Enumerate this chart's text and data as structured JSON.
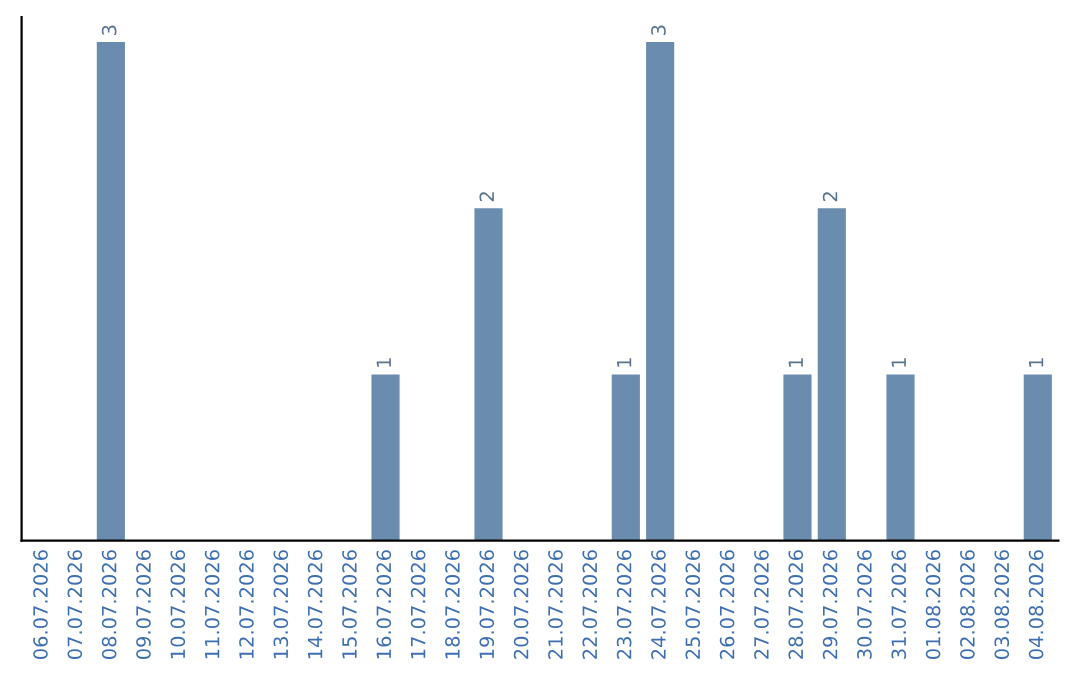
{
  "chart_data": {
    "type": "bar",
    "categories": [
      "06.07.2026",
      "07.07.2026",
      "08.07.2026",
      "09.07.2026",
      "10.07.2026",
      "11.07.2026",
      "12.07.2026",
      "13.07.2026",
      "14.07.2026",
      "15.07.2026",
      "16.07.2026",
      "17.07.2026",
      "18.07.2026",
      "19.07.2026",
      "20.07.2026",
      "21.07.2026",
      "22.07.2026",
      "23.07.2026",
      "24.07.2026",
      "25.07.2026",
      "26.07.2026",
      "27.07.2026",
      "28.07.2026",
      "29.07.2026",
      "30.07.2026",
      "31.07.2026",
      "01.08.2026",
      "02.08.2026",
      "03.08.2026",
      "04.08.2026"
    ],
    "values": [
      0,
      0,
      3,
      0,
      0,
      0,
      0,
      0,
      0,
      0,
      1,
      0,
      0,
      2,
      0,
      0,
      0,
      1,
      3,
      0,
      0,
      0,
      1,
      2,
      0,
      1,
      0,
      0,
      0,
      1
    ],
    "value_labels": [
      null,
      null,
      "3",
      null,
      null,
      null,
      null,
      null,
      null,
      null,
      "1",
      null,
      null,
      "2",
      null,
      null,
      null,
      "1",
      "3",
      null,
      null,
      null,
      "1",
      "2",
      null,
      "1",
      null,
      null,
      null,
      "1"
    ],
    "color": "#6a8caf",
    "tick_labels": "x",
    "grid": false,
    "legend": false
  }
}
